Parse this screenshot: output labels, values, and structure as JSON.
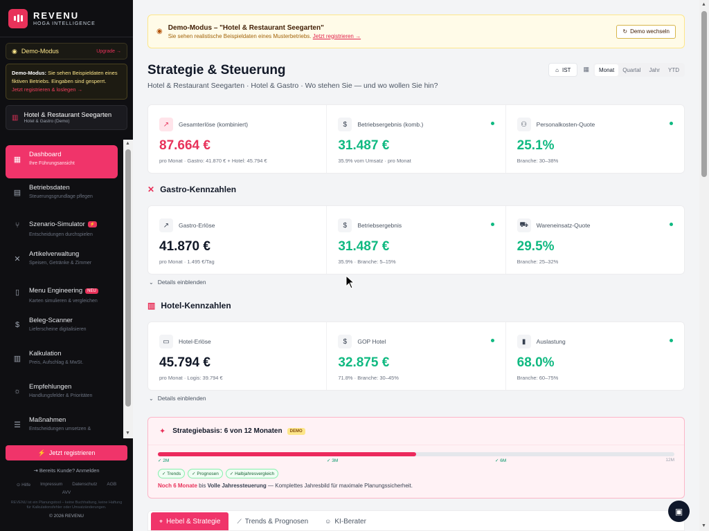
{
  "brand": {
    "title": "REVENU",
    "subtitle": "HOGA INTELLIGENCE"
  },
  "demo_pill": {
    "label": "Demo-Modus",
    "upgrade": "Upgrade →"
  },
  "demo_box": {
    "lead": "Demo-Modus:",
    "text": " Sie sehen Beispieldaten eines fiktiven Betriebs. Eingaben sind gesperrt.",
    "link": "Jetzt registrieren & loslegen →"
  },
  "company": {
    "name": "Hotel & Restaurant Seegarten",
    "type": "Hotel & Gastro (Demo)"
  },
  "nav": [
    {
      "label": "Dashboard",
      "desc": "Ihre Führungsansicht",
      "icon": "grid-icon",
      "glyph": "▦",
      "active": true
    },
    {
      "label": "Betriebsdaten",
      "desc": "Steuerungsgrundlage pflegen",
      "icon": "clipboard-icon",
      "glyph": "▤"
    },
    {
      "label": "Szenario-Simulator",
      "desc": "Entscheidungen durchspielen",
      "icon": "branch-icon",
      "glyph": "⑂",
      "badge": "⚡"
    },
    {
      "label": "Artikelverwaltung",
      "desc": "Speisen, Getränke & Zimmer",
      "icon": "utensils-icon",
      "glyph": "✕"
    },
    {
      "label": "Menu Engineering",
      "desc": "Karten simulieren & vergleichen",
      "icon": "book-icon",
      "glyph": "▯",
      "badge": "NEU"
    },
    {
      "label": "Beleg-Scanner",
      "desc": "Lieferscheine digitalisieren",
      "icon": "receipt-icon",
      "glyph": "$"
    },
    {
      "label": "Kalkulation",
      "desc": "Preis, Aufschlag & MwSt.",
      "icon": "calculator-icon",
      "glyph": "▥"
    },
    {
      "label": "Empfehlungen",
      "desc": "Handlungsfelder & Prioritäten",
      "icon": "lightbulb-icon",
      "glyph": "☼"
    },
    {
      "label": "Maßnahmen",
      "desc": "Entscheidungen umsetzen &",
      "icon": "list-icon",
      "glyph": "☰"
    }
  ],
  "sidebar_bottom": {
    "register": "Jetzt registrieren",
    "login": "Bereits Kunde? Anmelden",
    "links": [
      "Hilfe",
      "Impressum",
      "Datenschutz",
      "AGB",
      "AVV"
    ],
    "disclaimer": "REVENU ist ein Planungstool – keine Buchhaltung, keine Haftung für Kalkulationsfehler oder Umsatzänderungen.",
    "copyright": "© 2026 REVENU"
  },
  "banner": {
    "title": "Demo-Modus – \"Hotel & Restaurant Seegarten\"",
    "text": "Sie sehen realistische Beispieldaten eines Musterbetriebs. ",
    "link": "Jetzt registrieren →",
    "switch": "Demo wechseln"
  },
  "header": {
    "title": "Strategie & Steuerung",
    "subtitle": "Hotel & Restaurant Seegarten · Hotel & Gastro · Wo stehen Sie — und wo wollen Sie hin?",
    "ist": "IST",
    "periods": [
      "Monat",
      "Quartal",
      "Jahr",
      "YTD"
    ],
    "active_period": "Monat"
  },
  "kpis_top": [
    {
      "label": "Gesamterlöse (kombiniert)",
      "value": "87.664 €",
      "note": "pro Monat · Gastro: 41.870 € + Hotel: 45.794 €",
      "icon": "trend-up-icon",
      "glyph": "↗",
      "tone": "pink",
      "dot": false
    },
    {
      "label": "Betriebsergebnis (komb.)",
      "value": "31.487 €",
      "note": "35.9% vom Umsatz · pro Monat",
      "icon": "dollar-icon",
      "glyph": "$",
      "tone": "green",
      "dot": true
    },
    {
      "label": "Personalkosten-Quote",
      "value": "25.1%",
      "note": "Branche: 30–38%",
      "icon": "users-icon",
      "glyph": "⚇",
      "tone": "green",
      "dot": true
    }
  ],
  "gastro": {
    "title": "Gastro-Kennzahlen",
    "kpis": [
      {
        "label": "Gastro-Erlöse",
        "value": "41.870 €",
        "note": "pro Monat · 1.495 €/Tag",
        "icon": "trend-up-icon",
        "glyph": "↗",
        "tone": "dark",
        "dot": false
      },
      {
        "label": "Betriebsergebnis",
        "value": "31.487 €",
        "note": "35.9% · Branche: 5–15%",
        "icon": "dollar-icon",
        "glyph": "$",
        "tone": "green",
        "dot": true
      },
      {
        "label": "Wareneinsatz-Quote",
        "value": "29.5%",
        "note": "Branche: 25–32%",
        "icon": "cart-icon",
        "glyph": "⛟",
        "tone": "green",
        "dot": true
      }
    ],
    "details": "Details einblenden"
  },
  "hotel": {
    "title": "Hotel-Kennzahlen",
    "kpis": [
      {
        "label": "Hotel-Erlöse",
        "value": "45.794 €",
        "note": "pro Monat · Logis: 39.794 €",
        "icon": "bed-icon",
        "glyph": "▭",
        "tone": "dark",
        "dot": false
      },
      {
        "label": "GOP Hotel",
        "value": "32.875 €",
        "note": "71.8% · Branche: 30–45%",
        "icon": "dollar-icon",
        "glyph": "$",
        "tone": "green",
        "dot": true
      },
      {
        "label": "Auslastung",
        "value": "68.0%",
        "note": "Branche: 60–75%",
        "icon": "bar-chart-icon",
        "glyph": "▮",
        "tone": "green",
        "dot": true
      }
    ],
    "details": "Details einblenden"
  },
  "strategy": {
    "title": "Strategiebasis: 6 von 12 Monaten",
    "tag": "DEMO",
    "progress": 0.5,
    "ticks": [
      "✓ 2M",
      "✓ 3M",
      "✓ 6M",
      "12M"
    ],
    "chips": [
      "✓ Trends",
      "✓ Prognosen",
      "✓ Halbjahresvergleich"
    ],
    "foot_red": "Noch 6 Monate",
    "foot_mid": " bis ",
    "foot_bold": "Volle Jahressteuerung",
    "foot_rest": " — Komplettes Jahresbild für maximale Planungssicherheit."
  },
  "tabs": [
    {
      "label": "Hebel & Strategie",
      "icon": "target-icon",
      "glyph": "⌖",
      "active": true
    },
    {
      "label": "Trends & Prognosen",
      "icon": "chart-line-icon",
      "glyph": "⟋"
    },
    {
      "label": "KI-Berater",
      "icon": "robot-icon",
      "glyph": "☺"
    }
  ],
  "colors": {
    "accent": "#e8325a",
    "positive": "#10b981",
    "sidebar": "#0f0f12"
  }
}
